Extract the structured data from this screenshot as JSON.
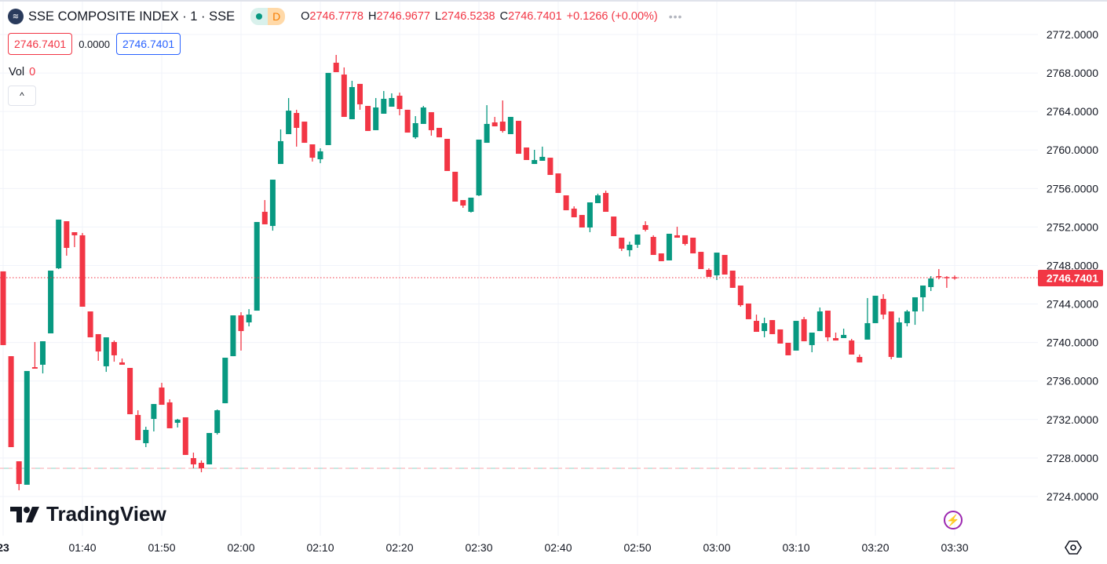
{
  "header": {
    "symbol_title": "SSE COMPOSITE INDEX · 1 · SSE",
    "market_badge": "D",
    "ohlc": {
      "o_label": "O",
      "o": "2746.7778",
      "h_label": "H",
      "h": "2746.9677",
      "l_label": "L",
      "l": "2746.5238",
      "c_label": "C",
      "c": "2746.7401",
      "change": "+0.1266 (+0.00%)"
    },
    "more": "•••"
  },
  "trade": {
    "sell": "2746.7401",
    "spread": "0.0000",
    "buy": "2746.7401"
  },
  "volume": {
    "label": "Vol",
    "value": "0"
  },
  "collapse_icon": "^",
  "brand": "TradingView",
  "colors": {
    "up": "#089981",
    "down": "#f23645",
    "grid": "#f0f3fa",
    "text": "#131722",
    "buy": "#2962ff",
    "accent": "#9c27b0"
  },
  "chart_data": {
    "type": "candlestick",
    "title": "SSE COMPOSITE INDEX · 1 · SSE",
    "interval": "1 minute",
    "ylim": [
      2721.7,
      2775.6
    ],
    "y_ticks": [
      "2772.0000",
      "2768.0000",
      "2764.0000",
      "2760.0000",
      "2756.0000",
      "2752.0000",
      "2748.0000",
      "2744.0000",
      "2740.0000",
      "2736.0000",
      "2732.0000",
      "2728.0000",
      "2724.0000"
    ],
    "y_tick_values": [
      2772,
      2768,
      2764,
      2760,
      2756,
      2752,
      2748,
      2744,
      2740,
      2736,
      2732,
      2728,
      2724
    ],
    "x_ticks": [
      "23",
      "01:40",
      "01:50",
      "02:00",
      "02:10",
      "02:20",
      "02:30",
      "02:40",
      "02:50",
      "03:00",
      "03:10",
      "03:20",
      "03:30"
    ],
    "x_tick_candle_index": [
      0,
      10,
      20,
      30,
      40,
      50,
      60,
      70,
      80,
      90,
      100,
      110,
      120
    ],
    "last_price": "2746.7401",
    "last_price_value": 2746.7401,
    "prev_close_line": 2726.93,
    "grid": true,
    "ohlc_fields": [
      "open",
      "high",
      "low",
      "close"
    ],
    "candles": [
      [
        2747.39,
        2747.39,
        2739.73,
        2739.73
      ],
      [
        2738.58,
        2738.58,
        2729.13,
        2729.13
      ],
      [
        2727.66,
        2727.66,
        2724.65,
        2725.3
      ],
      [
        2725.22,
        2737.04,
        2725.22,
        2737.04
      ],
      [
        2737.44,
        2740.05,
        2737.28,
        2737.28
      ],
      [
        2737.69,
        2740.13,
        2736.79,
        2740.13
      ],
      [
        2740.95,
        2747.47,
        2740.95,
        2747.47
      ],
      [
        2747.71,
        2752.77,
        2747.63,
        2752.77
      ],
      [
        2752.6,
        2752.6,
        2749.02,
        2749.83
      ],
      [
        2751.46,
        2751.46,
        2749.91,
        2751.14
      ],
      [
        2751.14,
        2751.38,
        2743.72,
        2743.72
      ],
      [
        2743.23,
        2743.23,
        2740.54,
        2740.54
      ],
      [
        2740.87,
        2740.87,
        2738.1,
        2739.07
      ],
      [
        2737.53,
        2740.54,
        2736.95,
        2740.54
      ],
      [
        2740.05,
        2740.21,
        2738.01,
        2738.67
      ],
      [
        2737.93,
        2738.34,
        2737.69,
        2737.69
      ],
      [
        2737.36,
        2737.36,
        2732.55,
        2732.55
      ],
      [
        2732.47,
        2732.96,
        2729.86,
        2729.86
      ],
      [
        2729.54,
        2731.25,
        2729.13,
        2730.92
      ],
      [
        2732.06,
        2733.61,
        2730.76,
        2733.61
      ],
      [
        2735.32,
        2735.81,
        2733.53,
        2733.53
      ],
      [
        2733.78,
        2734.1,
        2731.09,
        2731.09
      ],
      [
        2731.66,
        2732.07,
        2731.17,
        2731.98
      ],
      [
        2732.23,
        2732.23,
        2728.32,
        2728.32
      ],
      [
        2727.99,
        2728.56,
        2726.93,
        2727.34
      ],
      [
        2727.5,
        2727.75,
        2726.52,
        2726.93
      ],
      [
        2727.34,
        2730.6,
        2727.34,
        2730.6
      ],
      [
        2730.6,
        2733.04,
        2730.44,
        2732.96
      ],
      [
        2733.69,
        2738.42,
        2733.69,
        2738.42
      ],
      [
        2738.58,
        2742.82,
        2738.58,
        2742.82
      ],
      [
        2742.82,
        2743.15,
        2739.16,
        2741.19
      ],
      [
        2742.09,
        2743.47,
        2741.68,
        2742.9
      ],
      [
        2743.31,
        2752.52,
        2743.31,
        2752.52
      ],
      [
        2753.58,
        2754.8,
        2752.28,
        2752.28
      ],
      [
        2752.11,
        2756.92,
        2751.62,
        2756.92
      ],
      [
        2758.55,
        2762.14,
        2758.55,
        2760.92
      ],
      [
        2761.65,
        2765.4,
        2761.65,
        2764.09
      ],
      [
        2763.85,
        2764.18,
        2760.35,
        2762.3
      ],
      [
        2762.95,
        2762.95,
        2760.75,
        2760.75
      ],
      [
        2760.59,
        2760.59,
        2758.8,
        2759.2
      ],
      [
        2759.04,
        2760.18,
        2758.63,
        2759.86
      ],
      [
        2760.51,
        2768.01,
        2760.51,
        2768.01
      ],
      [
        2769.07,
        2769.88,
        2768.09,
        2768.09
      ],
      [
        2767.84,
        2768.58,
        2763.44,
        2763.44
      ],
      [
        2763.2,
        2767.19,
        2763.2,
        2766.54
      ],
      [
        2766.87,
        2766.87,
        2764.18,
        2764.75
      ],
      [
        2764.58,
        2764.58,
        2761.98,
        2761.98
      ],
      [
        2762.06,
        2765.4,
        2762.06,
        2764.42
      ],
      [
        2763.77,
        2766.13,
        2763.77,
        2765.32
      ],
      [
        2764.5,
        2765.89,
        2764.5,
        2765.4
      ],
      [
        2765.64,
        2765.97,
        2763.61,
        2764.26
      ],
      [
        2764.18,
        2764.18,
        2761.81,
        2761.81
      ],
      [
        2761.32,
        2763.52,
        2761.16,
        2762.79
      ],
      [
        2762.71,
        2764.58,
        2762.71,
        2764.42
      ],
      [
        2763.93,
        2763.93,
        2761.49,
        2762.06
      ],
      [
        2762.3,
        2762.3,
        2761.32,
        2761.32
      ],
      [
        2761.16,
        2761.16,
        2757.82,
        2757.82
      ],
      [
        2757.74,
        2757.74,
        2754.64,
        2754.64
      ],
      [
        2754.8,
        2754.8,
        2753.99,
        2754.23
      ],
      [
        2753.58,
        2755.05,
        2753.5,
        2755.05
      ],
      [
        2755.29,
        2761.08,
        2755.21,
        2761.08
      ],
      [
        2760.75,
        2764.66,
        2760.75,
        2762.71
      ],
      [
        2762.87,
        2763.44,
        2762.46,
        2762.46
      ],
      [
        2762.95,
        2765.15,
        2761.81,
        2761.98
      ],
      [
        2761.65,
        2763.44,
        2761.65,
        2763.44
      ],
      [
        2763.03,
        2763.03,
        2759.61,
        2759.61
      ],
      [
        2760.26,
        2760.26,
        2758.96,
        2758.96
      ],
      [
        2758.55,
        2760.02,
        2758.55,
        2758.96
      ],
      [
        2758.88,
        2760.35,
        2758.88,
        2759.29
      ],
      [
        2759.2,
        2759.2,
        2757.41,
        2757.41
      ],
      [
        2757.57,
        2757.57,
        2755.54,
        2755.54
      ],
      [
        2755.29,
        2755.29,
        2753.74,
        2753.74
      ],
      [
        2753.91,
        2754.15,
        2753.01,
        2753.01
      ],
      [
        2753.25,
        2753.25,
        2751.95,
        2751.95
      ],
      [
        2751.95,
        2754.56,
        2751.46,
        2754.56
      ],
      [
        2754.48,
        2755.46,
        2754.48,
        2755.29
      ],
      [
        2755.54,
        2755.78,
        2753.58,
        2753.58
      ],
      [
        2753.09,
        2753.09,
        2751.05,
        2751.05
      ],
      [
        2750.89,
        2750.89,
        2749.51,
        2749.75
      ],
      [
        2749.59,
        2750.48,
        2748.94,
        2750.16
      ],
      [
        2750.16,
        2751.22,
        2749.83,
        2751.22
      ],
      [
        2752.2,
        2752.6,
        2751.54,
        2751.71
      ],
      [
        2750.97,
        2751.14,
        2749.1,
        2749.1
      ],
      [
        2749.26,
        2749.26,
        2748.45,
        2748.45
      ],
      [
        2748.53,
        2751.3,
        2748.53,
        2751.3
      ],
      [
        2751.14,
        2752.03,
        2750.89,
        2750.89
      ],
      [
        2751.14,
        2751.14,
        2750.08,
        2750.24
      ],
      [
        2750.89,
        2750.89,
        2749.26,
        2749.26
      ],
      [
        2749.42,
        2749.42,
        2747.63,
        2747.63
      ],
      [
        2747.55,
        2747.71,
        2746.82,
        2746.82
      ],
      [
        2746.98,
        2749.34,
        2746.49,
        2749.34
      ],
      [
        2749.1,
        2749.1,
        2747.06,
        2747.06
      ],
      [
        2747.47,
        2747.47,
        2745.68,
        2745.68
      ],
      [
        2745.92,
        2745.92,
        2743.72,
        2743.88
      ],
      [
        2744.05,
        2744.05,
        2742.42,
        2742.42
      ],
      [
        2742.25,
        2742.9,
        2741.11,
        2741.11
      ],
      [
        2741.19,
        2742.58,
        2740.54,
        2742.01
      ],
      [
        2742.33,
        2742.33,
        2740.87,
        2740.87
      ],
      [
        2741.36,
        2741.36,
        2739.89,
        2739.89
      ],
      [
        2739.97,
        2739.97,
        2738.67,
        2738.67
      ],
      [
        2739.16,
        2742.25,
        2739.16,
        2742.25
      ],
      [
        2742.42,
        2742.66,
        2740.13,
        2740.13
      ],
      [
        2739.73,
        2741.03,
        2738.99,
        2741.03
      ],
      [
        2741.19,
        2743.64,
        2741.19,
        2743.23
      ],
      [
        2743.31,
        2743.31,
        2740.13,
        2740.54
      ],
      [
        2740.46,
        2741.03,
        2740.21,
        2740.21
      ],
      [
        2740.46,
        2741.44,
        2740.46,
        2740.79
      ],
      [
        2740.21,
        2740.38,
        2738.75,
        2738.75
      ],
      [
        2738.5,
        2738.75,
        2737.93,
        2737.93
      ],
      [
        2740.3,
        2744.62,
        2740.3,
        2742.01
      ],
      [
        2742.01,
        2744.86,
        2742.01,
        2744.86
      ],
      [
        2744.53,
        2745.02,
        2742.42,
        2742.9
      ],
      [
        2743.23,
        2743.23,
        2738.26,
        2738.5
      ],
      [
        2738.42,
        2742.58,
        2738.42,
        2742.09
      ],
      [
        2742.01,
        2743.39,
        2741.68,
        2743.23
      ],
      [
        2743.23,
        2744.7,
        2741.84,
        2744.7
      ],
      [
        2744.7,
        2745.92,
        2743.23,
        2745.92
      ],
      [
        2745.76,
        2746.9,
        2745.35,
        2746.65
      ],
      [
        2746.9,
        2747.63,
        2746.57,
        2746.82
      ],
      [
        2746.8,
        2746.9,
        2745.68,
        2746.7
      ],
      [
        2746.7778,
        2746.9677,
        2746.5238,
        2746.7401
      ]
    ]
  }
}
